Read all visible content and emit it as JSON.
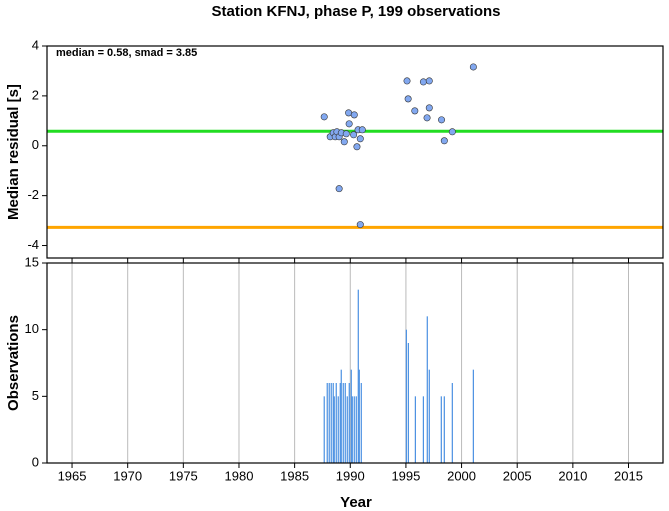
{
  "chart_data": [
    {
      "type": "scatter",
      "title": "Station KFNJ, phase P, 199 observations",
      "ylabel": "Median residual [s]",
      "annotation": "median = 0.58, smad = 3.85",
      "x": [
        1987.66,
        1988.2,
        1988.47,
        1988.65,
        1988.8,
        1989.0,
        1989.0,
        1989.2,
        1989.46,
        1989.64,
        1989.85,
        1989.9,
        1990.3,
        1990.36,
        1990.6,
        1990.7,
        1990.9,
        1990.9,
        1991.08,
        1995.1,
        1995.2,
        1995.8,
        1996.57,
        1997.1,
        1997.1,
        1996.9,
        1998.2,
        1998.45,
        1999.17,
        2001.06
      ],
      "values": [
        1.16,
        0.36,
        0.52,
        0.36,
        0.56,
        0.36,
        -1.72,
        0.52,
        0.16,
        0.48,
        1.32,
        0.88,
        0.44,
        1.24,
        -0.04,
        0.64,
        -3.16,
        0.28,
        0.64,
        2.6,
        1.88,
        1.4,
        2.56,
        2.6,
        1.52,
        1.12,
        1.04,
        0.2,
        0.56,
        3.16
      ],
      "color": "#82a8f0",
      "hlines": [
        {
          "value": 0.58,
          "color": "#22dd22"
        },
        {
          "value": -3.27,
          "color": "#ffa500"
        }
      ],
      "xlim": [
        1962.75,
        2018.1
      ],
      "ylim": [
        -4.5,
        4
      ],
      "xticks": [
        1965,
        1970,
        1975,
        1980,
        1985,
        1990,
        1995,
        2000,
        2005,
        2010,
        2015
      ],
      "yticks": [
        -4,
        -2,
        0,
        2,
        4
      ],
      "grid": false
    },
    {
      "type": "bar",
      "xlabel": "Year",
      "ylabel": "Observations",
      "x": [
        1987.66,
        1987.93,
        1988.11,
        1988.29,
        1988.47,
        1988.56,
        1988.74,
        1988.92,
        1989.1,
        1989.19,
        1989.37,
        1989.55,
        1989.73,
        1989.91,
        1990.09,
        1990.18,
        1990.36,
        1990.54,
        1990.72,
        1990.81,
        1990.99,
        1995.04,
        1995.22,
        1995.85,
        1996.57,
        1996.92,
        1997.1,
        1998.18,
        1998.45,
        1999.17,
        2001.06
      ],
      "values": [
        5,
        6,
        6,
        6,
        6,
        5,
        6,
        5,
        6,
        7,
        6,
        6,
        5,
        6,
        7,
        5,
        5,
        5,
        13,
        7,
        6,
        10,
        9,
        5,
        5,
        11,
        7,
        5,
        5,
        6,
        7
      ],
      "color": "#4a90e2",
      "xlim": [
        1962.75,
        2018.1
      ],
      "ylim": [
        0,
        15
      ],
      "xticks": [
        1965,
        1970,
        1975,
        1980,
        1985,
        1990,
        1995,
        2000,
        2005,
        2010,
        2015
      ],
      "yticks": [
        0,
        5,
        10,
        15
      ],
      "grid": "x"
    }
  ]
}
